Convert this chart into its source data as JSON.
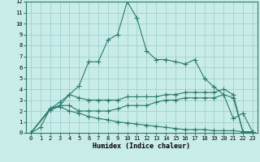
{
  "xlabel": "Humidex (Indice chaleur)",
  "bg_color": "#c8ece8",
  "grid_color": "#99cccc",
  "line_color": "#2a7a6a",
  "xlim": [
    -0.5,
    23.5
  ],
  "ylim": [
    0,
    12
  ],
  "xticks": [
    0,
    1,
    2,
    3,
    4,
    5,
    6,
    7,
    8,
    9,
    10,
    11,
    12,
    13,
    14,
    15,
    16,
    17,
    18,
    19,
    20,
    21,
    22,
    23
  ],
  "yticks": [
    0,
    1,
    2,
    3,
    4,
    5,
    6,
    7,
    8,
    9,
    10,
    11,
    12
  ],
  "line1_x": [
    0,
    1,
    2,
    3,
    4,
    5,
    6,
    7,
    8,
    9,
    10,
    11,
    12,
    13,
    14,
    15,
    16,
    17,
    18,
    19,
    20,
    21,
    22,
    23
  ],
  "line1_y": [
    0,
    0.5,
    2.2,
    2.8,
    3.5,
    4.3,
    6.5,
    6.5,
    8.5,
    9.0,
    12,
    10.5,
    7.5,
    6.7,
    6.7,
    6.5,
    6.3,
    6.7,
    5.0,
    4.2,
    3.5,
    1.3,
    1.8,
    0.1
  ],
  "line2_x": [
    0,
    2,
    3,
    4,
    5,
    6,
    7,
    8,
    9,
    10,
    11,
    12,
    13,
    14,
    15,
    16,
    17,
    18,
    19,
    20,
    21,
    22,
    23
  ],
  "line2_y": [
    0,
    2.2,
    2.5,
    3.5,
    3.2,
    3.0,
    3.0,
    3.0,
    3.0,
    3.3,
    3.3,
    3.3,
    3.3,
    3.5,
    3.5,
    3.7,
    3.7,
    3.7,
    3.7,
    4.0,
    3.5,
    0.1,
    0.1
  ],
  "line3_x": [
    0,
    2,
    3,
    4,
    5,
    6,
    7,
    8,
    9,
    10,
    11,
    12,
    13,
    14,
    15,
    16,
    17,
    18,
    19,
    20,
    21,
    22,
    23
  ],
  "line3_y": [
    0,
    2.2,
    2.5,
    2.5,
    2.0,
    2.0,
    2.0,
    2.0,
    2.2,
    2.5,
    2.5,
    2.5,
    2.8,
    3.0,
    3.0,
    3.2,
    3.2,
    3.2,
    3.2,
    3.5,
    3.2,
    0.1,
    0.1
  ],
  "line4_x": [
    0,
    2,
    3,
    4,
    5,
    6,
    7,
    8,
    9,
    10,
    11,
    12,
    13,
    14,
    15,
    16,
    17,
    18,
    19,
    20,
    21,
    22,
    23
  ],
  "line4_y": [
    0,
    2.1,
    2.4,
    2.0,
    1.8,
    1.5,
    1.3,
    1.2,
    1.0,
    0.9,
    0.8,
    0.7,
    0.6,
    0.5,
    0.4,
    0.3,
    0.3,
    0.3,
    0.2,
    0.2,
    0.2,
    0.1,
    0.0
  ]
}
